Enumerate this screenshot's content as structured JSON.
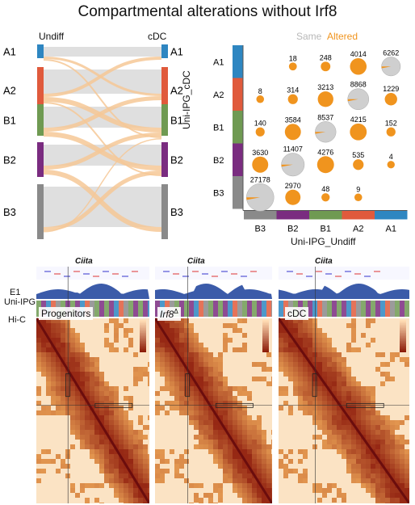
{
  "title": "Compartmental alterations without Irf8",
  "sankey": {
    "left_header": "Undiff",
    "right_header": "cDC",
    "compartments": [
      "A1",
      "A2",
      "B1",
      "B2",
      "B3"
    ],
    "colors": {
      "A1": "#2e86c1",
      "A2": "#e05a3c",
      "B1": "#6f9a52",
      "B2": "#7a2c80",
      "B3": "#8a8a8a"
    }
  },
  "pie_matrix": {
    "legend_same": "Same",
    "legend_altered": "Altered",
    "y_title": "Uni-IPG_cDC",
    "x_title": "Uni-IPG_Undiff",
    "rows": [
      "A1",
      "A2",
      "B1",
      "B2",
      "B3"
    ],
    "cols": [
      "B3",
      "B2",
      "B1",
      "A2",
      "A1"
    ],
    "counts": [
      [
        null,
        18,
        248,
        4014,
        6262
      ],
      [
        8,
        314,
        3213,
        8868,
        1229
      ],
      [
        140,
        3584,
        8537,
        4215,
        152
      ],
      [
        3630,
        11407,
        4276,
        535,
        4
      ],
      [
        27178,
        2970,
        48,
        9,
        null
      ]
    ],
    "altered_fraction": [
      [
        null,
        1.0,
        1.0,
        1.0,
        0.03
      ],
      [
        1.0,
        1.0,
        1.0,
        0.03,
        1.0
      ],
      [
        1.0,
        1.0,
        0.03,
        1.0,
        1.0
      ],
      [
        1.0,
        0.03,
        1.0,
        1.0,
        1.0
      ],
      [
        0.03,
        1.0,
        1.0,
        1.0,
        null
      ]
    ],
    "colors": {
      "same": "#cfcfcf",
      "altered": "#f0941e"
    }
  },
  "hic": {
    "gene": "Ciita",
    "track_labels": [
      "E1",
      "Uni-IPG",
      "Hi-C"
    ],
    "panels": [
      {
        "label": "Progenitors"
      },
      {
        "label": "Irf8",
        "superscript": "Δ"
      },
      {
        "label": "cDC"
      }
    ]
  }
}
